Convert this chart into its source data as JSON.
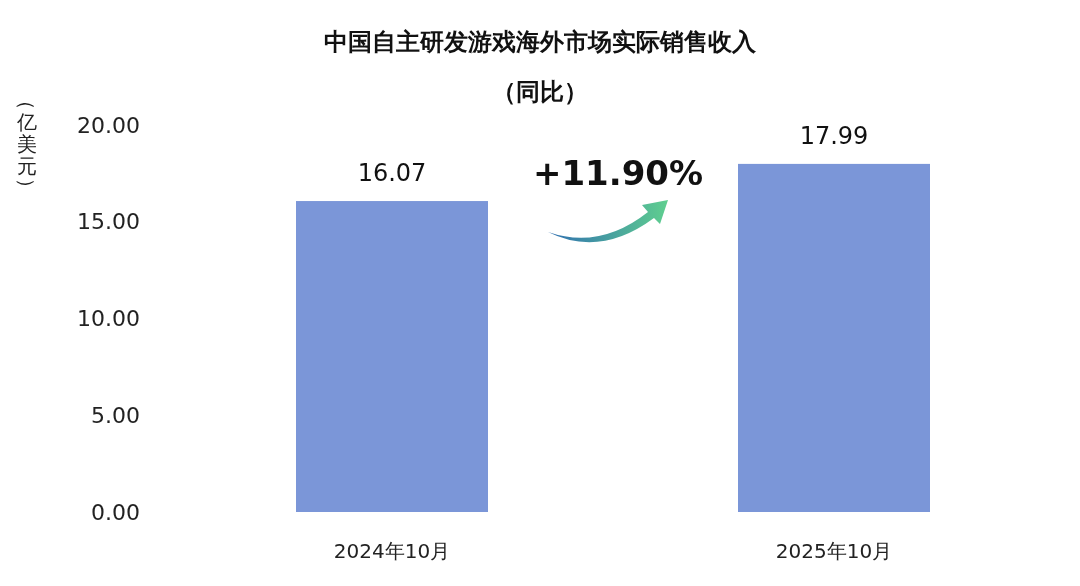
{
  "chart_data": {
    "type": "bar",
    "title": "中国自主研发游戏海外市场实际销售收入",
    "subtitle": "（同比）",
    "ylabel": "（亿美元）",
    "categories": [
      "2024年10月",
      "2025年10月"
    ],
    "values": [
      16.07,
      17.99
    ],
    "color": "#7b96d8",
    "ylim": [
      0,
      20
    ],
    "yticks": [
      {
        "value": 0,
        "label": "0.00"
      },
      {
        "value": 5,
        "label": "5.00"
      },
      {
        "value": 10,
        "label": "10.00"
      },
      {
        "value": 15,
        "label": "15.00"
      },
      {
        "value": 20,
        "label": "20.00"
      }
    ],
    "data_labels": true,
    "grid": false,
    "annotations": [
      "+11.90%"
    ]
  }
}
